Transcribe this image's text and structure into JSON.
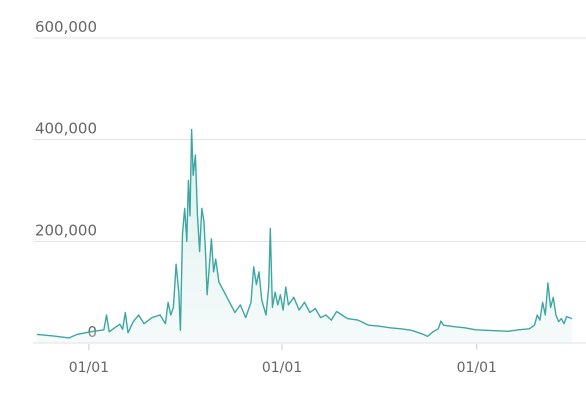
{
  "chart_data": {
    "type": "area",
    "title": "",
    "xlabel": "",
    "ylabel": "",
    "ylim": [
      0,
      600000
    ],
    "grid": "horizontal",
    "legend": "none",
    "y_ticks": [
      {
        "value": 0,
        "label": "0"
      },
      {
        "value": 200000,
        "label": "200,000"
      },
      {
        "value": 400000,
        "label": "400,000"
      },
      {
        "value": 600000,
        "label": "600,000"
      }
    ],
    "x_ticks": [
      {
        "value": 0.097,
        "label": "01/01"
      },
      {
        "value": 0.458,
        "label": "01/01"
      },
      {
        "value": 0.822,
        "label": "01/01"
      }
    ],
    "series": [
      {
        "line_color": "#3ea6a0",
        "fill_color": "#d8efed",
        "points": [
          [
            0.0,
            17000
          ],
          [
            0.03,
            14000
          ],
          [
            0.06,
            10000
          ],
          [
            0.075,
            17000
          ],
          [
            0.1,
            22000
          ],
          [
            0.125,
            26000
          ],
          [
            0.13,
            55000
          ],
          [
            0.135,
            22000
          ],
          [
            0.145,
            30000
          ],
          [
            0.155,
            37000
          ],
          [
            0.16,
            27000
          ],
          [
            0.165,
            60000
          ],
          [
            0.17,
            20000
          ],
          [
            0.18,
            42000
          ],
          [
            0.19,
            55000
          ],
          [
            0.2,
            38000
          ],
          [
            0.215,
            50000
          ],
          [
            0.23,
            55000
          ],
          [
            0.24,
            38000
          ],
          [
            0.245,
            80000
          ],
          [
            0.25,
            55000
          ],
          [
            0.255,
            70000
          ],
          [
            0.26,
            155000
          ],
          [
            0.265,
            100000
          ],
          [
            0.268,
            25000
          ],
          [
            0.272,
            215000
          ],
          [
            0.276,
            265000
          ],
          [
            0.28,
            200000
          ],
          [
            0.283,
            320000
          ],
          [
            0.286,
            250000
          ],
          [
            0.289,
            420000
          ],
          [
            0.292,
            330000
          ],
          [
            0.296,
            370000
          ],
          [
            0.3,
            250000
          ],
          [
            0.304,
            180000
          ],
          [
            0.308,
            265000
          ],
          [
            0.312,
            240000
          ],
          [
            0.315,
            180000
          ],
          [
            0.318,
            95000
          ],
          [
            0.322,
            150000
          ],
          [
            0.326,
            205000
          ],
          [
            0.33,
            140000
          ],
          [
            0.334,
            165000
          ],
          [
            0.34,
            120000
          ],
          [
            0.35,
            100000
          ],
          [
            0.36,
            80000
          ],
          [
            0.37,
            60000
          ],
          [
            0.38,
            75000
          ],
          [
            0.39,
            50000
          ],
          [
            0.4,
            80000
          ],
          [
            0.405,
            150000
          ],
          [
            0.41,
            115000
          ],
          [
            0.415,
            140000
          ],
          [
            0.42,
            85000
          ],
          [
            0.428,
            55000
          ],
          [
            0.433,
            110000
          ],
          [
            0.436,
            225000
          ],
          [
            0.44,
            70000
          ],
          [
            0.445,
            100000
          ],
          [
            0.45,
            75000
          ],
          [
            0.455,
            95000
          ],
          [
            0.46,
            65000
          ],
          [
            0.465,
            110000
          ],
          [
            0.47,
            75000
          ],
          [
            0.48,
            90000
          ],
          [
            0.49,
            65000
          ],
          [
            0.5,
            80000
          ],
          [
            0.51,
            60000
          ],
          [
            0.52,
            68000
          ],
          [
            0.53,
            50000
          ],
          [
            0.54,
            55000
          ],
          [
            0.55,
            45000
          ],
          [
            0.56,
            62000
          ],
          [
            0.57,
            55000
          ],
          [
            0.58,
            48000
          ],
          [
            0.6,
            45000
          ],
          [
            0.62,
            35000
          ],
          [
            0.64,
            33000
          ],
          [
            0.66,
            30000
          ],
          [
            0.68,
            28000
          ],
          [
            0.7,
            25000
          ],
          [
            0.72,
            18000
          ],
          [
            0.73,
            13000
          ],
          [
            0.74,
            22000
          ],
          [
            0.75,
            28000
          ],
          [
            0.755,
            43000
          ],
          [
            0.76,
            35000
          ],
          [
            0.78,
            32000
          ],
          [
            0.8,
            30000
          ],
          [
            0.82,
            26000
          ],
          [
            0.84,
            25000
          ],
          [
            0.86,
            24000
          ],
          [
            0.88,
            23000
          ],
          [
            0.9,
            26000
          ],
          [
            0.92,
            28000
          ],
          [
            0.93,
            35000
          ],
          [
            0.935,
            55000
          ],
          [
            0.94,
            45000
          ],
          [
            0.945,
            80000
          ],
          [
            0.95,
            55000
          ],
          [
            0.955,
            118000
          ],
          [
            0.96,
            70000
          ],
          [
            0.965,
            90000
          ],
          [
            0.97,
            55000
          ],
          [
            0.975,
            42000
          ],
          [
            0.98,
            48000
          ],
          [
            0.985,
            38000
          ],
          [
            0.99,
            52000
          ],
          [
            1.0,
            48000
          ]
        ]
      }
    ]
  }
}
